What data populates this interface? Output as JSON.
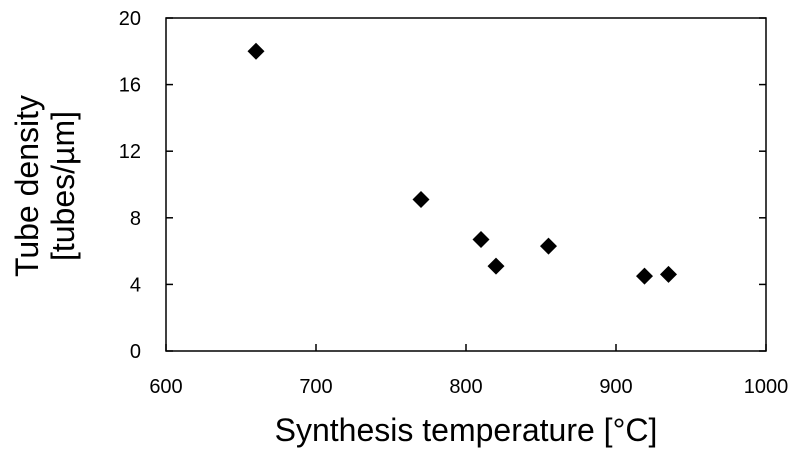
{
  "chart_data": {
    "type": "scatter",
    "title": "",
    "xlabel": "Synthesis temperature [°C]",
    "ylabel_lines": [
      "Tube density",
      "[tubes/µm]"
    ],
    "xlim": [
      600,
      1000
    ],
    "ylim": [
      0,
      20
    ],
    "xticks": [
      600,
      700,
      800,
      900,
      1000
    ],
    "yticks": [
      0,
      4,
      8,
      12,
      16,
      20
    ],
    "grid": false,
    "legend": "none",
    "marker": "diamond",
    "series": [
      {
        "color": "#000000",
        "points": [
          {
            "x": 660,
            "y": 18.0
          },
          {
            "x": 770,
            "y": 9.1
          },
          {
            "x": 810,
            "y": 6.7
          },
          {
            "x": 820,
            "y": 5.1
          },
          {
            "x": 855,
            "y": 6.3
          },
          {
            "x": 919,
            "y": 4.5
          },
          {
            "x": 935,
            "y": 4.6
          }
        ]
      }
    ]
  }
}
